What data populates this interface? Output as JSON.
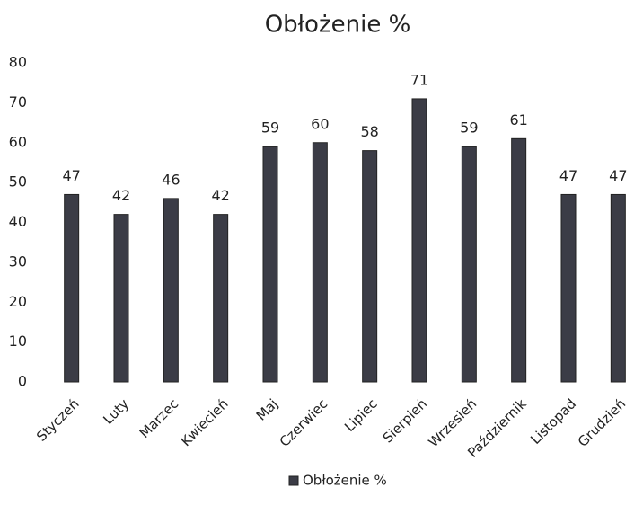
{
  "chart_data": {
    "type": "bar",
    "title": "Obłożenie %",
    "categories": [
      "Styczeń",
      "Luty",
      "Marzec",
      "Kwiecień",
      "Maj",
      "Czerwiec",
      "Lipiec",
      "Sierpień",
      "Wrzesień",
      "Październik",
      "Listopad",
      "Grudzień"
    ],
    "series": [
      {
        "name": "Obłożenie %",
        "color": "#3b3c46",
        "values": [
          47,
          42,
          46,
          42,
          59,
          60,
          58,
          71,
          59,
          61,
          47,
          47
        ]
      }
    ],
    "ylim": [
      0,
      80
    ],
    "yticks": [
      0,
      10,
      20,
      30,
      40,
      50,
      60,
      70,
      80
    ],
    "grid": false,
    "legend": "bottom"
  }
}
